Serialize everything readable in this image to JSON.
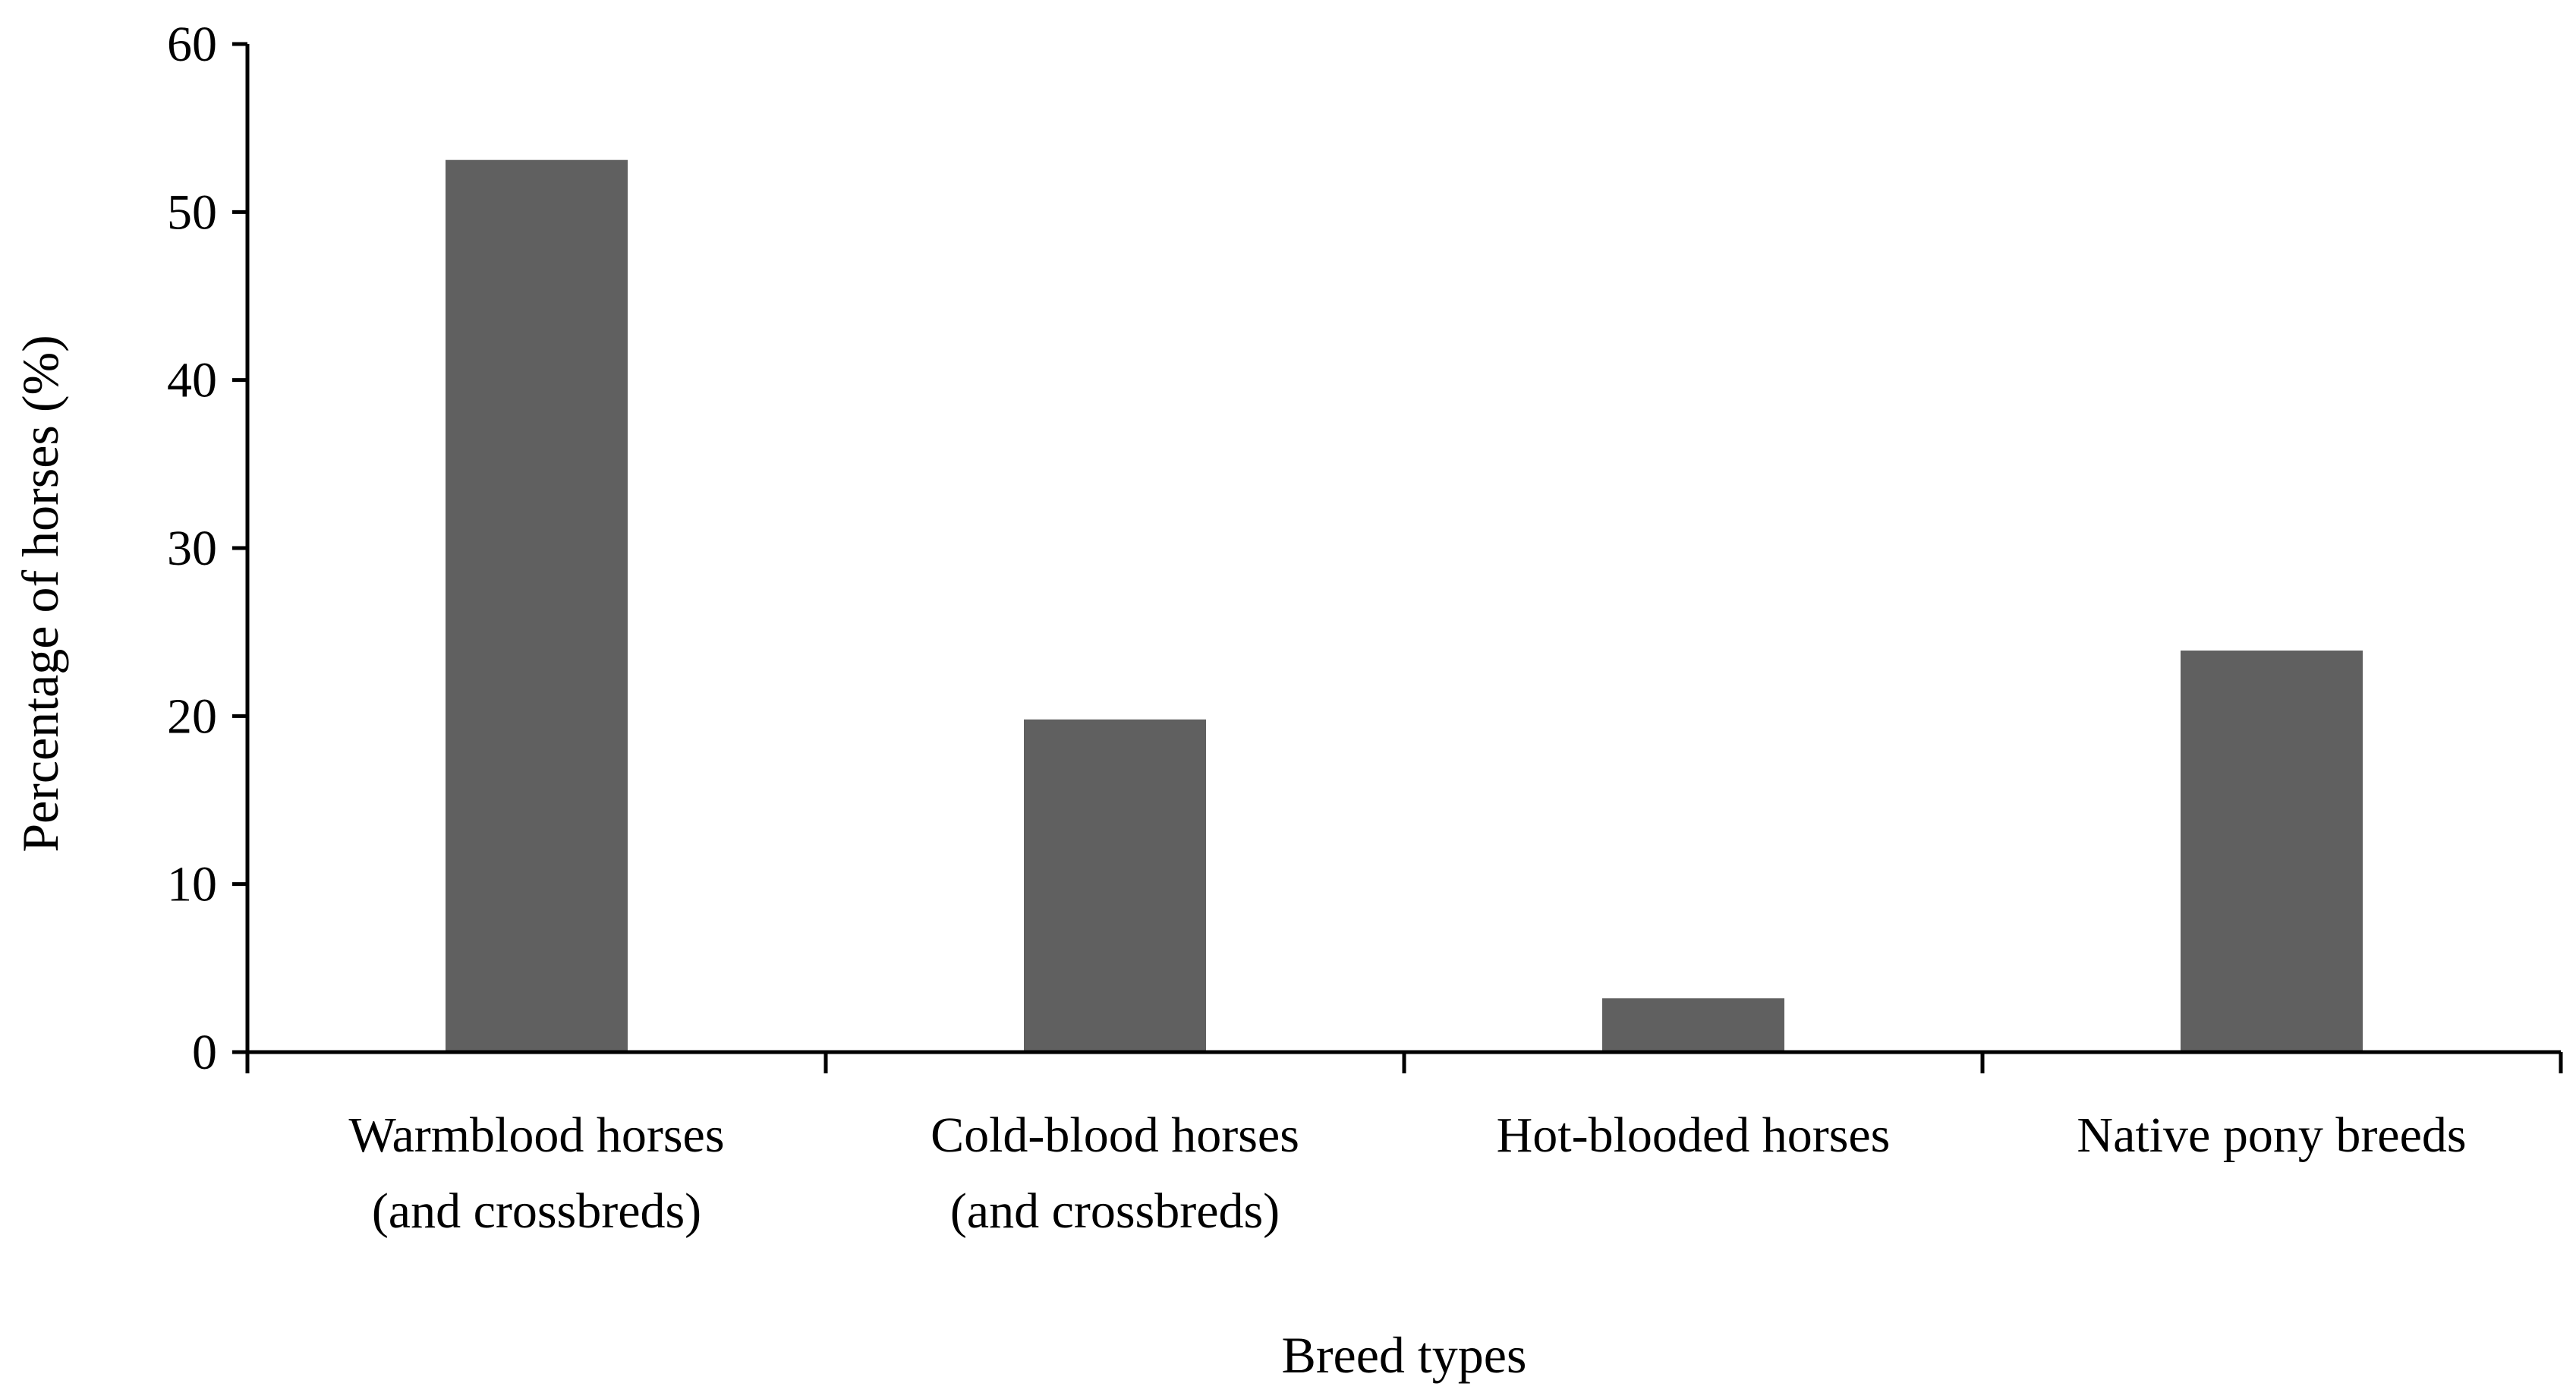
{
  "chart_data": {
    "type": "bar",
    "title": "",
    "xlabel": "Breed types",
    "ylabel": "Percentage of horses (%)",
    "categories": [
      [
        "Warmblood horses",
        "(and crossbreds)"
      ],
      [
        "Cold-blood horses",
        "(and crossbreds)"
      ],
      [
        "Hot-blooded horses"
      ],
      [
        "Native pony breeds"
      ]
    ],
    "values": [
      53.1,
      19.8,
      3.2,
      23.9
    ],
    "ylim": [
      0,
      60
    ],
    "yticks": [
      "0",
      "10",
      "20",
      "30",
      "40",
      "50",
      "60"
    ],
    "grid": false,
    "legend": "none",
    "bar_color": "#606060",
    "axis_color": "#000000"
  }
}
